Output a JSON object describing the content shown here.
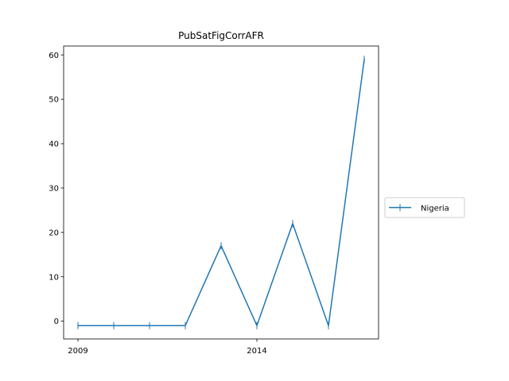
{
  "chart_data": {
    "type": "line",
    "title": "PubSatFigCorrAFR",
    "xlabel": "",
    "ylabel": "",
    "x": [
      2009,
      2010,
      2011,
      2012,
      2013,
      2014,
      2015,
      2016,
      2017
    ],
    "series": [
      {
        "name": "Nigeria",
        "color": "#1f77b4",
        "marker": "vertical-tick",
        "values": [
          -1,
          -1,
          -1,
          -1,
          17,
          -1,
          22,
          -1,
          59
        ]
      }
    ],
    "xlim": [
      2008.6,
      2017.4
    ],
    "ylim": [
      -4,
      62
    ],
    "xticks": [
      2009,
      2014
    ],
    "yticks": [
      0,
      10,
      20,
      30,
      40,
      50,
      60
    ],
    "grid": false,
    "legend_position": "center-right, outside plot"
  }
}
